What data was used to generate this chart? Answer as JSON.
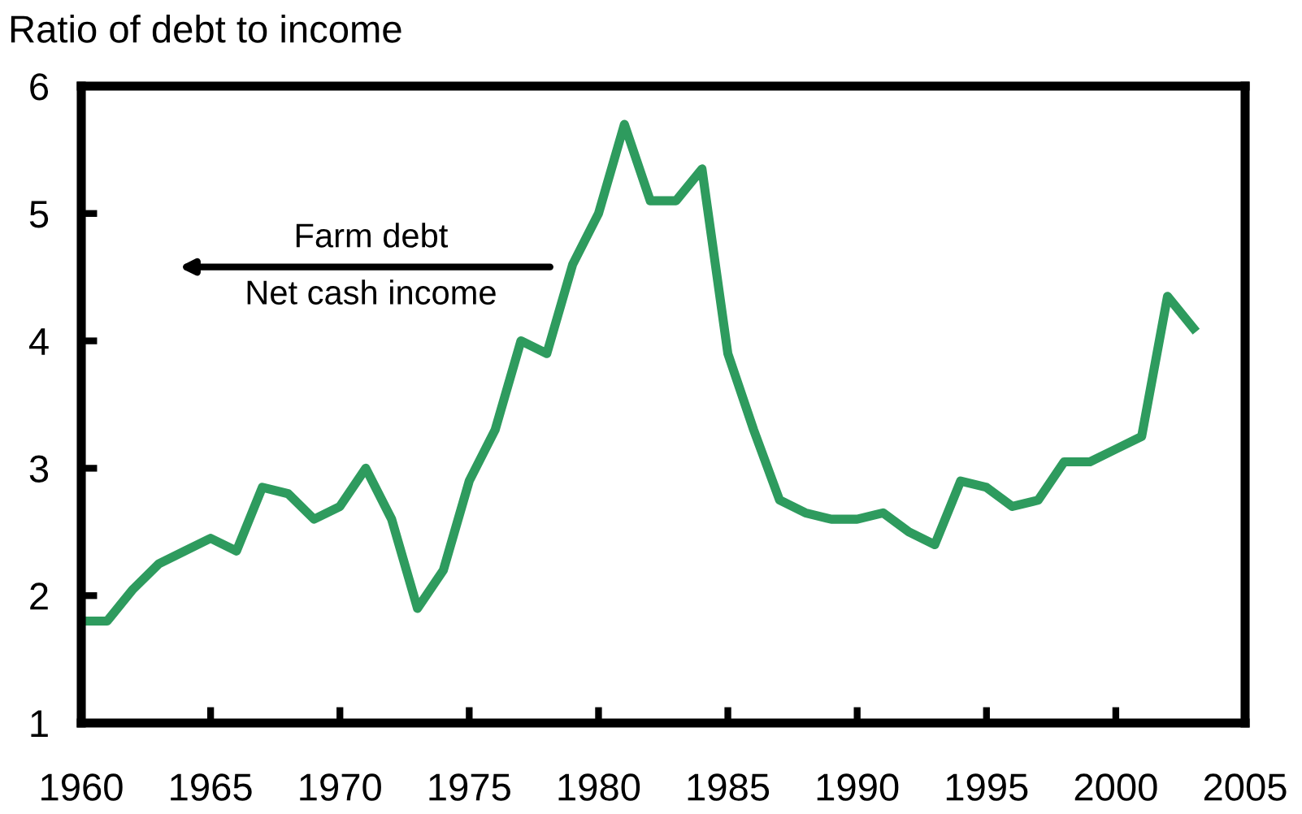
{
  "chart_data": {
    "type": "line",
    "ylabel": "Ratio of debt to income",
    "x": [
      1960,
      1961,
      1962,
      1963,
      1964,
      1965,
      1966,
      1967,
      1968,
      1969,
      1970,
      1971,
      1972,
      1973,
      1974,
      1975,
      1976,
      1977,
      1978,
      1979,
      1980,
      1981,
      1982,
      1983,
      1984,
      1985,
      1986,
      1987,
      1988,
      1989,
      1990,
      1991,
      1992,
      1993,
      1994,
      1995,
      1996,
      1997,
      1998,
      1999,
      2000,
      2001,
      2002,
      2003
    ],
    "series": [
      {
        "color": "#2e9b5e",
        "values": [
          1.8,
          1.8,
          2.05,
          2.25,
          2.35,
          2.45,
          2.35,
          2.85,
          2.8,
          2.6,
          2.7,
          3.0,
          2.6,
          1.9,
          2.2,
          2.9,
          3.3,
          4.0,
          3.9,
          4.6,
          5.0,
          5.7,
          5.1,
          5.1,
          5.35,
          3.9,
          3.3,
          2.75,
          2.65,
          2.6,
          2.6,
          2.65,
          2.5,
          2.4,
          2.9,
          2.85,
          2.7,
          2.75,
          3.05,
          3.05,
          3.15,
          3.25,
          4.35,
          4.1
        ]
      }
    ],
    "xlim": [
      1960,
      2005
    ],
    "ylim": [
      1,
      6
    ],
    "xticks": [
      1960,
      1965,
      1970,
      1975,
      1980,
      1985,
      1990,
      1995,
      2000,
      2005
    ],
    "yticks": [
      1,
      2,
      3,
      4,
      5,
      6
    ],
    "annotations": [
      "Farm debt",
      "Net cash income"
    ],
    "grid": false,
    "legend": false,
    "marker": "none",
    "line_style": "solid"
  }
}
